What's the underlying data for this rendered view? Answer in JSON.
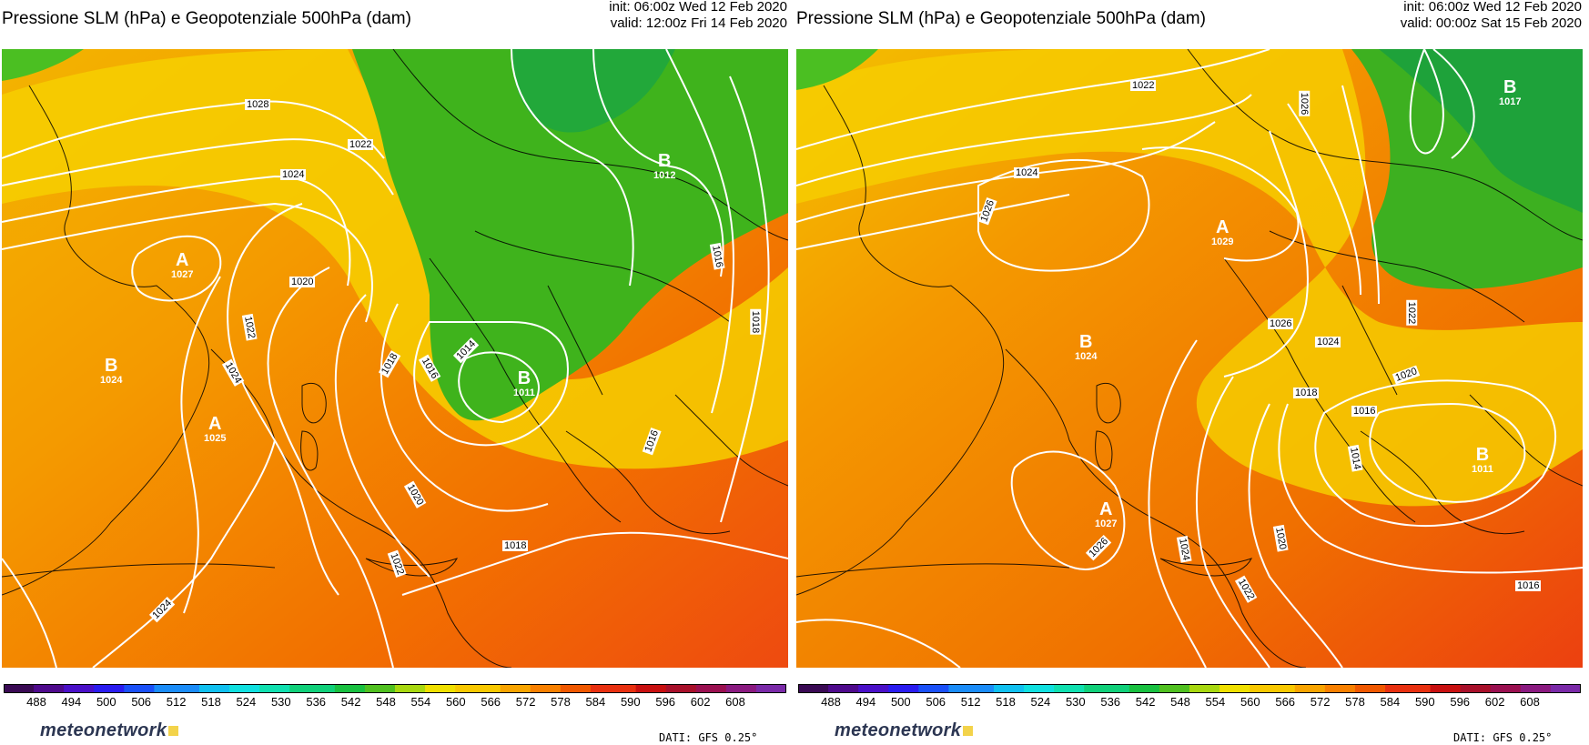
{
  "panels": [
    {
      "title": "Pressione SLM (hPa) e Geopotenziale 500hPa (dam)",
      "init": "init: 06:00z Wed 12 Feb 2020",
      "valid": "valid: 12:00z Fri 14 Feb 2020",
      "isobar_labels": [
        "1028",
        "1022",
        "1024",
        "1020",
        "1022",
        "1024",
        "1018",
        "1016",
        "1014",
        "1016",
        "1018",
        "1016",
        "1020",
        "1022",
        "1018",
        "1024"
      ],
      "centers": [
        {
          "letter": "A",
          "value": "1027"
        },
        {
          "letter": "B",
          "value": "1024"
        },
        {
          "letter": "A",
          "value": "1025"
        },
        {
          "letter": "B",
          "value": "1011"
        },
        {
          "letter": "B",
          "value": "1012"
        }
      ]
    },
    {
      "title": "Pressione SLM (hPa) e Geopotenziale 500hPa (dam)",
      "init": "init: 06:00z Wed 12 Feb 2020",
      "valid": "valid: 00:00z Sat 15 Feb 2020",
      "isobar_labels": [
        "1022",
        "1026",
        "1024",
        "1026",
        "1026",
        "1024",
        "1022",
        "1020",
        "1018",
        "1016",
        "1014",
        "1026",
        "1024",
        "1020",
        "1022",
        "1016"
      ],
      "centers": [
        {
          "letter": "A",
          "value": "1029"
        },
        {
          "letter": "B",
          "value": "1024"
        },
        {
          "letter": "A",
          "value": "1027"
        },
        {
          "letter": "B",
          "value": "1017"
        },
        {
          "letter": "B",
          "value": "1011"
        }
      ]
    }
  ],
  "colorbar": {
    "ticks": [
      "488",
      "494",
      "500",
      "506",
      "512",
      "518",
      "524",
      "530",
      "536",
      "542",
      "548",
      "554",
      "560",
      "566",
      "572",
      "578",
      "584",
      "590",
      "596",
      "602",
      "608"
    ],
    "colors": [
      "#3a0a54",
      "#4e0a8c",
      "#4a10c8",
      "#2a1cf0",
      "#1a50f8",
      "#1a8cf8",
      "#10c0f0",
      "#10e0e0",
      "#10e0b0",
      "#10d07a",
      "#18c040",
      "#50c020",
      "#a8d810",
      "#f0e000",
      "#f8c800",
      "#f8a400",
      "#f88000",
      "#f05800",
      "#e83010",
      "#c81010",
      "#a8102a",
      "#9a1050",
      "#8a1a80",
      "#7a2aa8"
    ]
  },
  "logo": "meteonetwork",
  "source": "DATI: GFS 0.25°"
}
